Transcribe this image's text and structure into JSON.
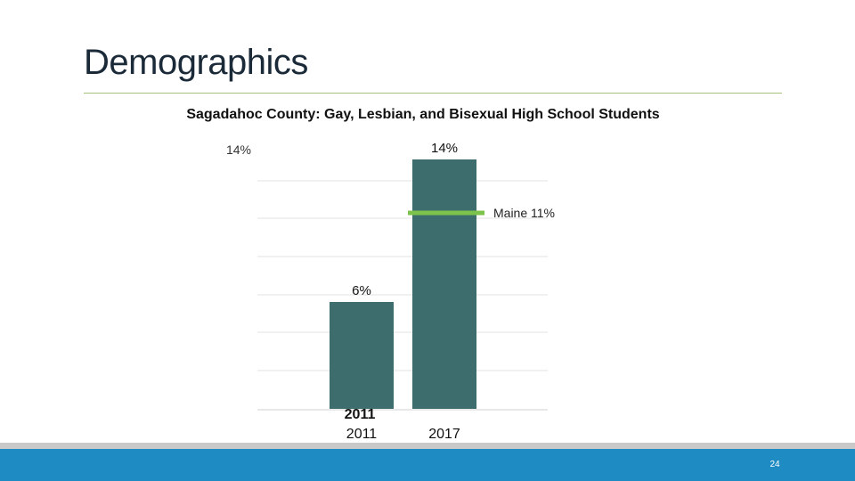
{
  "slide": {
    "title": "Demographics",
    "page_number": "24"
  },
  "colors": {
    "bar": "#3d6d6d",
    "maine_line": "#7dc24b",
    "grid": "#e3e3e3",
    "title_rule": "#a9c27a",
    "footer": "#1e8bc3"
  },
  "chart_data": {
    "type": "bar",
    "title": "Sagadahoc County: Gay, Lesbian, and Bisexual High School Students",
    "categories": [
      "2011",
      "2017"
    ],
    "values": [
      6,
      14
    ],
    "data_labels": [
      "6%",
      "14%"
    ],
    "y_tick_label": "14%",
    "overlap_label": "2011",
    "reference_line": {
      "label": "Maine 11%",
      "value": 11
    },
    "ylim": [
      0,
      14.8
    ],
    "grid": true,
    "xlabel": "",
    "ylabel": ""
  }
}
